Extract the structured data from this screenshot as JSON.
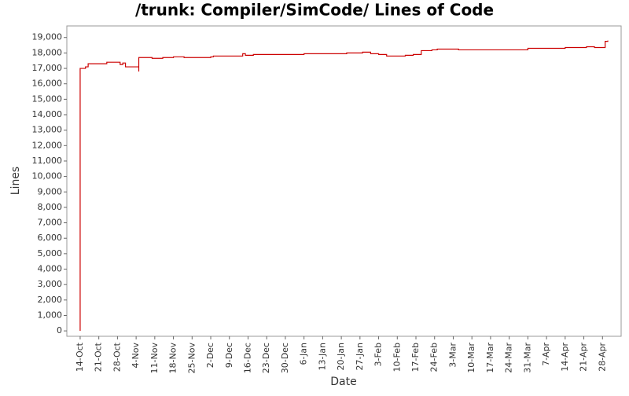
{
  "chart_data": {
    "type": "step-line",
    "title": "/trunk: Compiler/SimCode/ Lines of Code",
    "x_label": "Date",
    "y_label": "Lines",
    "xlim": [
      "9-Oct",
      "5-May"
    ],
    "xticks": [
      "14-Oct",
      "21-Oct",
      "28-Oct",
      "4-Nov",
      "11-Nov",
      "18-Nov",
      "25-Nov",
      "2-Dec",
      "9-Dec",
      "16-Dec",
      "23-Dec",
      "30-Dec",
      "6-Jan",
      "13-Jan",
      "20-Jan",
      "27-Jan",
      "3-Feb",
      "10-Feb",
      "17-Feb",
      "24-Feb",
      "3-Mar",
      "10-Mar",
      "17-Mar",
      "24-Mar",
      "31-Mar",
      "7-Apr",
      "14-Apr",
      "21-Apr",
      "28-Apr"
    ],
    "ylim": [
      -350,
      19750
    ],
    "yticks": [
      0,
      {
        "value": 1000,
        "label": "1,000"
      },
      {
        "value": 2000,
        "label": "2,000"
      },
      {
        "value": 3000,
        "label": "3,000"
      },
      {
        "value": 4000,
        "label": "4,000"
      },
      {
        "value": 5000,
        "label": "5,000"
      },
      {
        "value": 6000,
        "label": "6,000"
      },
      {
        "value": 7000,
        "label": "7,000"
      },
      {
        "value": 8000,
        "label": "8,000"
      },
      {
        "value": 9000,
        "label": "9,000"
      },
      {
        "value": 10000,
        "label": "10,000"
      },
      {
        "value": 11000,
        "label": "11,000"
      },
      {
        "value": 12000,
        "label": "12,000"
      },
      {
        "value": 13000,
        "label": "13,000"
      },
      {
        "value": 14000,
        "label": "14,000"
      },
      {
        "value": 15000,
        "label": "15,000"
      },
      {
        "value": 16000,
        "label": "16,000"
      },
      {
        "value": 17000,
        "label": "17,000"
      },
      {
        "value": 18000,
        "label": "18,000"
      },
      {
        "value": 19000,
        "label": "19,000"
      }
    ],
    "color": "#cc0000",
    "x": [
      "14-Oct",
      "14-Oct",
      "16-Oct",
      "17-Oct",
      "24-Oct",
      "29-Oct",
      "30-Oct",
      "31-Oct",
      "5-Nov",
      "5-Nov",
      "10-Nov",
      "14-Nov",
      "18-Nov",
      "22-Nov",
      "2-Dec",
      "3-Dec",
      "14-Dec",
      "15-Dec",
      "18-Dec",
      "6-Jan",
      "16-Jan",
      "22-Jan",
      "28-Jan",
      "31-Jan",
      "3-Feb",
      "6-Feb",
      "13-Feb",
      "16-Feb",
      "19-Feb",
      "23-Feb",
      "25-Feb",
      "5-Mar",
      "31-Mar",
      "14-Apr",
      "22-Apr",
      "25-Apr",
      "29-Apr",
      "30-Apr"
    ],
    "values": [
      0,
      17000,
      17100,
      17300,
      17400,
      17250,
      17350,
      17100,
      16800,
      17700,
      17650,
      17700,
      17750,
      17700,
      17750,
      17800,
      17950,
      17850,
      17900,
      17950,
      17950,
      18000,
      18050,
      17950,
      17900,
      17800,
      17850,
      17900,
      18150,
      18200,
      18250,
      18200,
      18300,
      18350,
      18400,
      18350,
      18750,
      18800
    ]
  }
}
